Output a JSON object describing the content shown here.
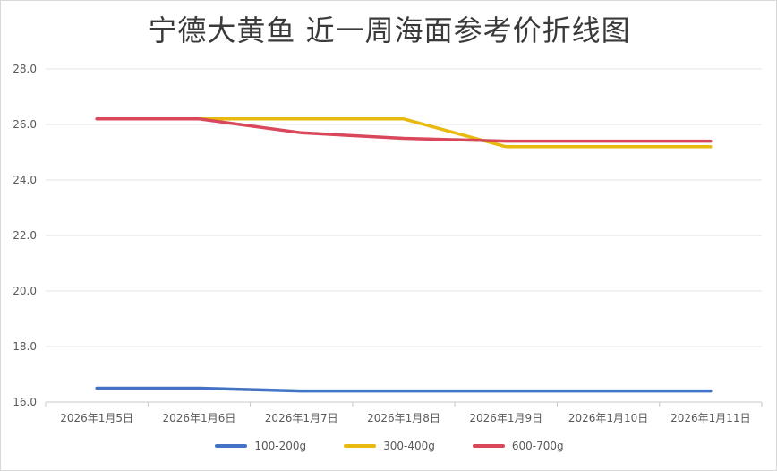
{
  "chart_data": {
    "type": "line",
    "title": "宁德大黄鱼 近一周海面参考价折线图",
    "xlabel": "",
    "ylabel": "",
    "categories": [
      "2026年1月5日",
      "2026年1月6日",
      "2026年1月7日",
      "2026年1月8日",
      "2026年1月9日",
      "2026年1月10日",
      "2026年1月11日"
    ],
    "ylim": [
      16.0,
      28.0
    ],
    "yticks": [
      "16.0",
      "18.0",
      "20.0",
      "22.0",
      "24.0",
      "26.0",
      "28.0"
    ],
    "grid": true,
    "legend_position": "bottom",
    "series": [
      {
        "name": "100-200g",
        "color": "#4472c4",
        "values": [
          16.5,
          16.5,
          16.4,
          16.4,
          16.4,
          16.4,
          16.4
        ]
      },
      {
        "name": "300-400g",
        "color": "#e8b90e",
        "values": [
          26.2,
          26.2,
          26.2,
          26.2,
          25.2,
          25.2,
          25.2
        ]
      },
      {
        "name": "600-700g",
        "color": "#d9475a",
        "values": [
          26.2,
          26.2,
          25.7,
          25.5,
          25.4,
          25.4,
          25.4
        ]
      }
    ]
  }
}
